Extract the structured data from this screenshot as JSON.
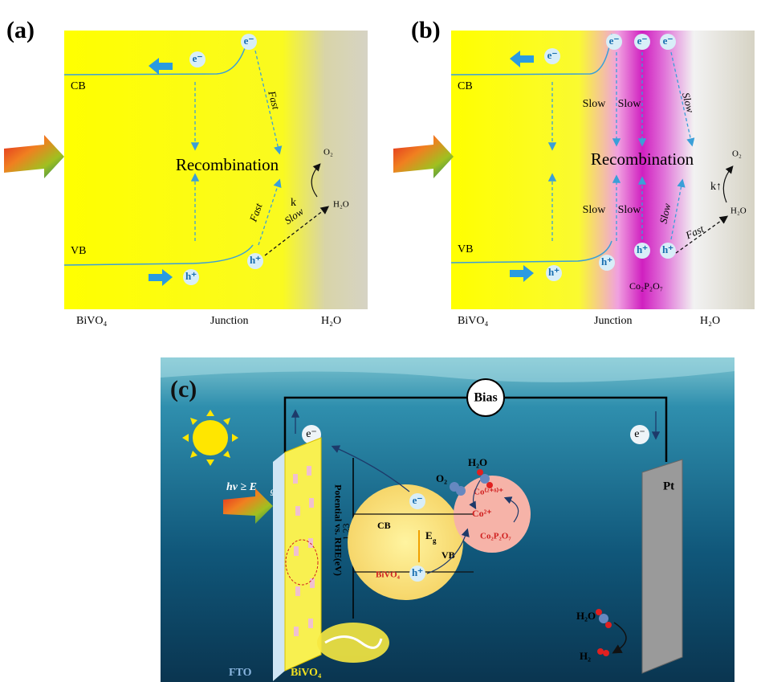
{
  "panel_a": {
    "label": "(a)",
    "cb": "CB",
    "vb": "VB",
    "electrons": [
      "e⁻",
      "e⁻"
    ],
    "holes": [
      "h⁺",
      "h⁺"
    ],
    "recombination": "Recombination",
    "fast_top": "Fast",
    "fast_bottom": "Fast",
    "slow": "Slow",
    "k": "k",
    "o2": "O₂",
    "h2o": "H₂O",
    "regions": [
      "BiVO₄",
      "Junction",
      "H₂O"
    ]
  },
  "panel_b": {
    "label": "(b)",
    "cb": "CB",
    "vb": "VB",
    "electrons": [
      "e⁻",
      "e⁻",
      "e⁻",
      "e⁻"
    ],
    "holes": [
      "h⁺",
      "h⁺",
      "h⁺"
    ],
    "recombination": "Recombination",
    "slow_labels": [
      "Slow",
      "Slow",
      "Slow",
      "Slow",
      "Slow",
      "Slow"
    ],
    "fast": "Fast",
    "k": "k↑",
    "o2": "O₂",
    "h2o": "H₂O",
    "cocatalyst": "Co₂P₂O₇",
    "regions": [
      "BiVO₄",
      "Junction",
      "H₂O"
    ]
  },
  "panel_c": {
    "label": "(c)",
    "bias": "Bias",
    "electrons": [
      "e⁻",
      "e⁻",
      "e⁻"
    ],
    "photon": "hν ≥ E",
    "photon_sub": "g",
    "axis_label": "Potential vs. RHE(eV)",
    "potential": "1.23",
    "cb": "CB",
    "vb": "VB",
    "bandgap": "E",
    "bandgap_sub": "g",
    "semiconductor": "BiVO₄",
    "hole": "h⁺",
    "co_low": "Co²⁺",
    "co_high": "Co⁽²⁺ᵟ⁾⁺",
    "cocatalyst": "Co₂P₂O₇",
    "o2": "O₂",
    "h2o_top": "H₂O",
    "h2o_pt": "H₂O",
    "h2": "H₂",
    "pt": "Pt",
    "fto": "FTO",
    "bivo4": "BiVO₄"
  }
}
